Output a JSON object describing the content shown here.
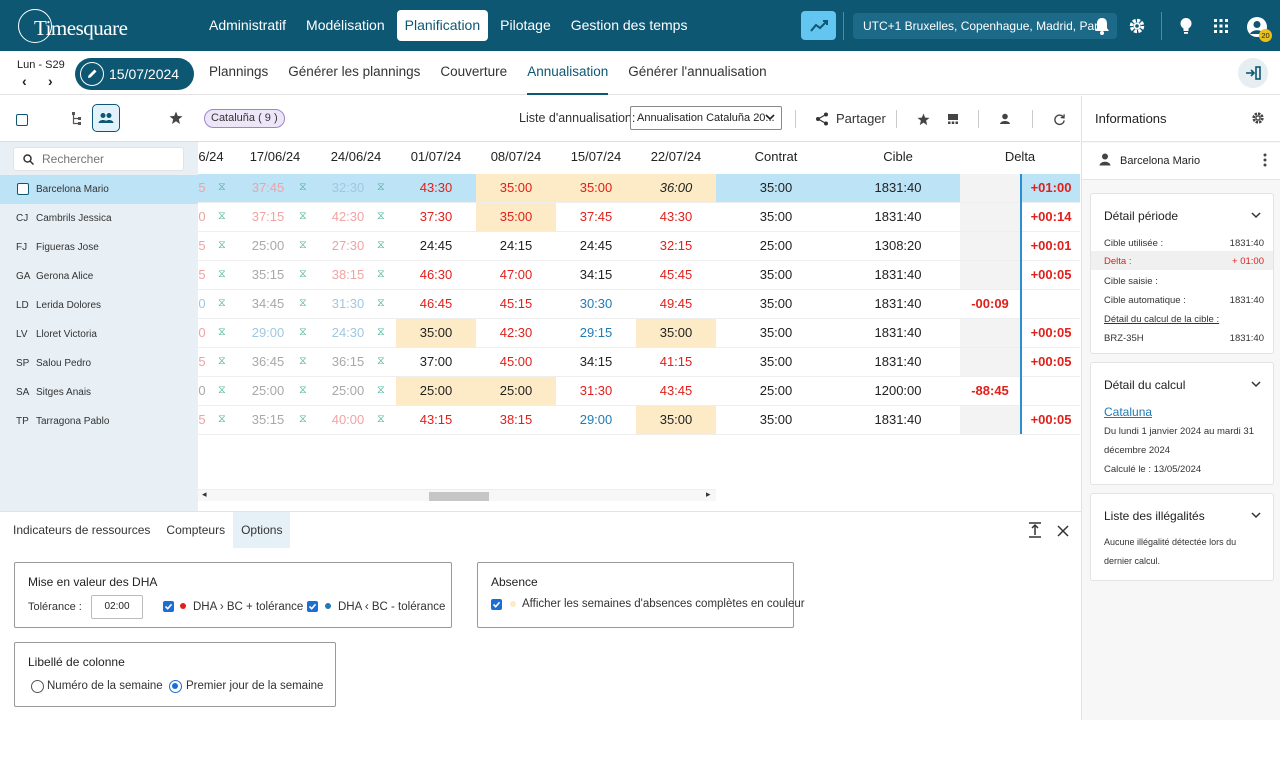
{
  "app": {
    "logo": "Timesquare"
  },
  "topnav": {
    "items": [
      {
        "label": "Administratif",
        "active": false
      },
      {
        "label": "Modélisation",
        "active": false
      },
      {
        "label": "Planification",
        "active": true
      },
      {
        "label": "Pilotage",
        "active": false
      },
      {
        "label": "Gestion des temps",
        "active": false
      }
    ],
    "timezone": "UTC+1 Bruxelles, Copenhague, Madrid, Paris",
    "avatar_badge": "20"
  },
  "date": {
    "week": "Lun - S29",
    "current": "15/07/2024"
  },
  "subnav": {
    "items": [
      {
        "label": "Plannings",
        "active": false
      },
      {
        "label": "Générer les plannings",
        "active": false
      },
      {
        "label": "Couverture",
        "active": false
      },
      {
        "label": "Annualisation",
        "active": true
      },
      {
        "label": "Générer l'annualisation",
        "active": false
      }
    ]
  },
  "left": {
    "search_placeholder": "Rechercher"
  },
  "employees": [
    {
      "initials": "",
      "name": "Barcelona Mario",
      "selected": true
    },
    {
      "initials": "CJ",
      "name": "Cambrils Jessica",
      "selected": false
    },
    {
      "initials": "FJ",
      "name": "Figueras Jose",
      "selected": false
    },
    {
      "initials": "GA",
      "name": "Gerona Alice",
      "selected": false
    },
    {
      "initials": "LD",
      "name": "Lerida Dolores",
      "selected": false
    },
    {
      "initials": "LV",
      "name": "Lloret Victoria",
      "selected": false
    },
    {
      "initials": "SP",
      "name": "Salou Pedro",
      "selected": false
    },
    {
      "initials": "SA",
      "name": "Sitges Anais",
      "selected": false
    },
    {
      "initials": "TP",
      "name": "Tarragona Pablo",
      "selected": false
    }
  ],
  "grid": {
    "chip": "Cataluña ( 9 )",
    "list_label": "Liste d'annualisation:",
    "list_value": "Annualisation Cataluña 20...",
    "share_label": "Partager",
    "headers": {
      "w0": "6/24",
      "w1": "17/06/24",
      "w2": "24/06/24",
      "w3": "01/07/24",
      "w4": "08/07/24",
      "w5": "15/07/24",
      "w6": "22/07/24",
      "contrat": "Contrat",
      "cible": "Cible",
      "delta": "Delta"
    },
    "hourglass": "⧖",
    "rows": [
      {
        "c0": "5",
        "c1": "37:45",
        "c2": "32:30",
        "c3": "43:30",
        "c4": "35:00",
        "c5": "35:00",
        "c6": "36:00",
        "contrat": "35:00",
        "cible": "1831:40",
        "dneg": "",
        "dpos": "+01:00"
      },
      {
        "c0": "0",
        "c1": "37:15",
        "c2": "42:30",
        "c3": "37:30",
        "c4": "35:00",
        "c5": "37:45",
        "c6": "43:30",
        "contrat": "35:00",
        "cible": "1831:40",
        "dneg": "",
        "dpos": "+00:14"
      },
      {
        "c0": "5",
        "c1": "25:00",
        "c2": "27:30",
        "c3": "24:45",
        "c4": "24:15",
        "c5": "24:45",
        "c6": "32:15",
        "contrat": "25:00",
        "cible": "1308:20",
        "dneg": "",
        "dpos": "+00:01"
      },
      {
        "c0": "5",
        "c1": "35:15",
        "c2": "38:15",
        "c3": "46:30",
        "c4": "47:00",
        "c5": "34:15",
        "c6": "45:45",
        "contrat": "35:00",
        "cible": "1831:40",
        "dneg": "",
        "dpos": "+00:05"
      },
      {
        "c0": "0",
        "c1": "34:45",
        "c2": "31:30",
        "c3": "46:45",
        "c4": "45:15",
        "c5": "30:30",
        "c6": "49:45",
        "contrat": "35:00",
        "cible": "1831:40",
        "dneg": "-00:09",
        "dpos": ""
      },
      {
        "c0": "0",
        "c1": "29:00",
        "c2": "24:30",
        "c3": "35:00",
        "c4": "42:30",
        "c5": "29:15",
        "c6": "35:00",
        "contrat": "35:00",
        "cible": "1831:40",
        "dneg": "",
        "dpos": "+00:05"
      },
      {
        "c0": "5",
        "c1": "36:45",
        "c2": "36:15",
        "c3": "37:00",
        "c4": "45:00",
        "c5": "34:15",
        "c6": "41:15",
        "contrat": "35:00",
        "cible": "1831:40",
        "dneg": "",
        "dpos": "+00:05"
      },
      {
        "c0": "0",
        "c1": "25:00",
        "c2": "25:00",
        "c3": "25:00",
        "c4": "25:00",
        "c5": "31:30",
        "c6": "43:45",
        "contrat": "25:00",
        "cible": "1200:00",
        "dneg": "-88:45",
        "dpos": ""
      },
      {
        "c0": "5",
        "c1": "35:15",
        "c2": "40:00",
        "c3": "43:15",
        "c4": "38:15",
        "c5": "29:00",
        "c6": "35:00",
        "contrat": "35:00",
        "cible": "1831:40",
        "dneg": "",
        "dpos": "+00:05"
      }
    ]
  },
  "info": {
    "title": "Informations",
    "person": "Barcelona Mario",
    "periode": {
      "title": "Détail période",
      "cible_utilisee_label": "Cible utilisée :",
      "cible_utilisee": "1831:40",
      "delta_label": "Delta :",
      "delta": "+ 01:00",
      "cible_saisie_label": "Cible saisie :",
      "cible_auto_label": "Cible automatique :",
      "cible_auto": "1831:40",
      "detail_link": "Détail du calcul de la cible :",
      "code": "BRZ-35H",
      "code_value": "1831:40"
    },
    "calcul": {
      "title": "Détail du calcul",
      "link": "Cataluna",
      "range1": "Du lundi 1 janvier 2024 au mardi 31",
      "range2": "décembre 2024",
      "computed": "Calculé le : 13/05/2024"
    },
    "illegalites": {
      "title": "Liste des illégalités",
      "text1": "Aucune illégalité détectée lors du",
      "text2": "dernier calcul."
    }
  },
  "bottom": {
    "tabs": [
      {
        "label": "Indicateurs de ressources",
        "active": false
      },
      {
        "label": "Compteurs",
        "active": false
      },
      {
        "label": "Options",
        "active": true
      }
    ],
    "dha": {
      "title": "Mise en valeur des DHA",
      "tolerance_label": "Tolérance :",
      "tolerance_value": "02:00",
      "opt1": "DHA › BC + tolérance",
      "opt2": "DHA ‹ BC - tolérance"
    },
    "absence": {
      "title": "Absence",
      "opt": "Afficher les semaines d'absences complètes en couleur"
    },
    "libelle": {
      "title": "Libellé de colonne",
      "opt1": "Numéro de la semaine",
      "opt2": "Premier jour de la semaine"
    }
  },
  "colors": {
    "brand": "#0e5773",
    "accent": "#63c6f1",
    "positive": "#e0201a",
    "blue": "#1f7bb6",
    "highlight": "#fdebc7",
    "selected_row": "#bde3f6"
  }
}
